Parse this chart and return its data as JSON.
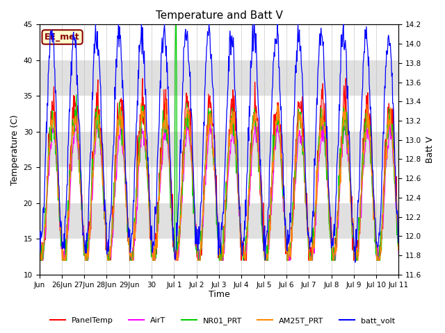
{
  "title": "Temperature and Batt V",
  "xlabel": "Time",
  "ylabel_left": "Temperature (C)",
  "ylabel_right": "Batt V",
  "ylim_left": [
    10,
    45
  ],
  "ylim_right": [
    11.6,
    14.2
  ],
  "annotation_text": "EE_met",
  "annotation_bg": "#ffffcc",
  "annotation_border": "#8b0000",
  "bg_band_color": "#e0e0e0",
  "series_colors": {
    "PanelTemp": "#ff0000",
    "AirT": "#ff00ff",
    "NR01_PRT": "#00cc00",
    "AM25T_PRT": "#ff8800",
    "batt_volt": "#0000ff"
  },
  "xtick_positions": [
    0,
    1,
    2,
    3,
    4,
    5,
    6,
    7,
    8,
    9,
    10,
    11,
    12,
    13,
    14,
    15,
    16
  ],
  "xtick_labels": [
    "Jun",
    "26Jun",
    "27Jun",
    "28Jun",
    "29Jun",
    "30",
    "Jul 1",
    "Jul 2",
    "Jul 3",
    "Jul 4",
    "Jul 5",
    "Jul 6",
    "Jul 7",
    "Jul 8",
    "Jul 9",
    "Jul 10",
    "Jul 11"
  ],
  "title_fontsize": 11,
  "axis_fontsize": 9,
  "tick_fontsize": 7.5
}
